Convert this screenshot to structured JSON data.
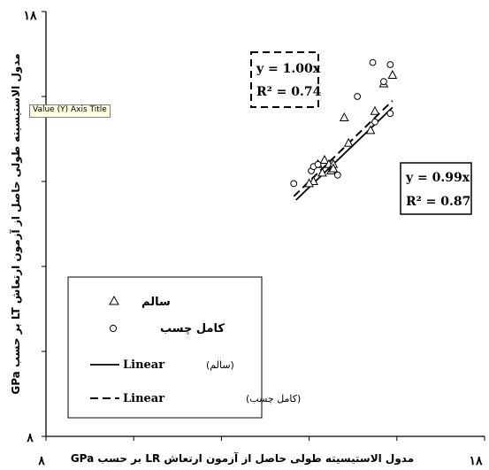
{
  "tooltip": "Value (Y) Axis Title",
  "chart_data": {
    "type": "scatter",
    "xlabel": "مدول الاستیسیته طولی حاصل از آزمون ارتعاش LR بر حسب GPa",
    "ylabel": "مدول الاستیسیته طولی حاصل از آزمون ارتعاش LT بر حسب GPa",
    "xlim": [
      8,
      18
    ],
    "ylim": [
      8,
      18
    ],
    "tick_labels": {
      "x_min": "۸",
      "x_max": "۱۸",
      "y_min": "۸",
      "y_max": "۱۸"
    },
    "grid": false,
    "series": [
      {
        "name": "سالم",
        "marker": "triangle",
        "points": [
          [
            14.1,
            14.0
          ],
          [
            14.2,
            14.4
          ],
          [
            14.35,
            14.5
          ],
          [
            14.45,
            14.4
          ],
          [
            14.55,
            14.4
          ],
          [
            14.3,
            14.2
          ],
          [
            14.5,
            14.25
          ],
          [
            14.55,
            14.3
          ],
          [
            14.0,
            13.95
          ],
          [
            14.8,
            15.5
          ],
          [
            14.9,
            14.9
          ],
          [
            15.4,
            15.2
          ],
          [
            15.5,
            15.65
          ],
          [
            15.7,
            16.3
          ],
          [
            15.9,
            16.5
          ]
        ]
      },
      {
        "name": "کامل چسب",
        "marker": "circle",
        "points": [
          [
            13.65,
            13.95
          ],
          [
            14.05,
            14.25
          ],
          [
            14.1,
            14.35
          ],
          [
            14.2,
            14.4
          ],
          [
            14.65,
            14.15
          ],
          [
            15.1,
            16.0
          ],
          [
            15.45,
            16.8
          ],
          [
            15.85,
            16.75
          ],
          [
            15.7,
            16.35
          ],
          [
            15.5,
            15.4
          ],
          [
            15.85,
            15.6
          ]
        ]
      }
    ],
    "trendlines": [
      {
        "series": "سالم",
        "slope": 0.99,
        "equation": "y = 0.99x",
        "r2": "R² = 0.87",
        "dash": "solid",
        "x_range": [
          13.7,
          15.9
        ]
      },
      {
        "series": "کامل چسب",
        "slope": 1.0,
        "equation": "y = 1.00x",
        "r2": "R² = 0.74",
        "dash": "dashed",
        "x_range": [
          13.65,
          15.9
        ]
      }
    ],
    "legend": {
      "position": "bottom-left",
      "entries": [
        {
          "label": "سالم",
          "marker": "triangle"
        },
        {
          "label": "کامل چسب",
          "marker": "circle"
        },
        {
          "label": "Linear",
          "paren": "(سالم)",
          "line": "solid"
        },
        {
          "label": "Linear",
          "paren": "(کامل چسب)",
          "line": "dashed"
        }
      ]
    }
  }
}
